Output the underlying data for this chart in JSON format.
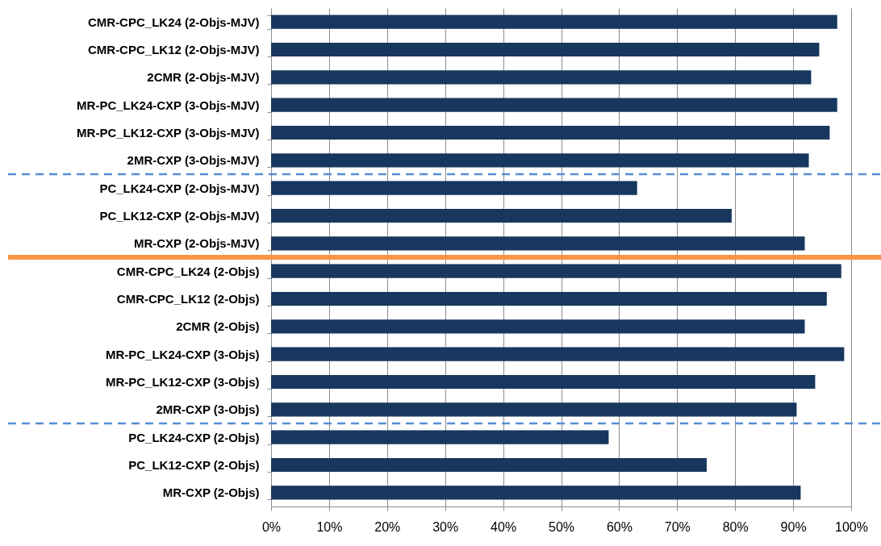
{
  "chart_data": {
    "type": "bar",
    "orientation": "horizontal",
    "categories": [
      "CMR-CPC_LK24 (2-Objs-MJV)",
      "CMR-CPC_LK12 (2-Objs-MJV)",
      "2CMR (2-Objs-MJV)",
      "MR-PC_LK24-CXP (3-Objs-MJV)",
      "MR-PC_LK12-CXP (3-Objs-MJV)",
      "2MR-CXP (3-Objs-MJV)",
      "PC_LK24-CXP (2-Objs-MJV)",
      "PC_LK12-CXP (2-Objs-MJV)",
      "MR-CXP (2-Objs-MJV)",
      "CMR-CPC_LK24 (2-Objs)",
      "CMR-CPC_LK12 (2-Objs)",
      "2CMR (2-Objs)",
      "MR-PC_LK24-CXP (3-Objs)",
      "MR-PC_LK12-CXP (3-Objs)",
      "2MR-CXP (3-Objs)",
      "PC_LK24-CXP (2-Objs)",
      "PC_LK12-CXP (2-Objs)",
      "MR-CXP (2-Objs)"
    ],
    "values": [
      97.6,
      94.5,
      93.1,
      97.6,
      96.3,
      92.7,
      63.1,
      79.4,
      92.0,
      98.3,
      95.8,
      92.0,
      98.8,
      93.8,
      90.6,
      58.2,
      75.1,
      91.3
    ],
    "color": "#17375e",
    "xlim": [
      0,
      100
    ],
    "xticks": [
      {
        "value": 0,
        "label": "0%"
      },
      {
        "value": 10,
        "label": "10%"
      },
      {
        "value": 20,
        "label": "20%"
      },
      {
        "value": 30,
        "label": "30%"
      },
      {
        "value": 40,
        "label": "40%"
      },
      {
        "value": 50,
        "label": "50%"
      },
      {
        "value": 60,
        "label": "60%"
      },
      {
        "value": 70,
        "label": "70%"
      },
      {
        "value": 80,
        "label": "80%"
      },
      {
        "value": 90,
        "label": "90%"
      },
      {
        "value": 100,
        "label": "100%"
      }
    ],
    "grid": "x",
    "ref_lines": [
      {
        "axis": "y",
        "value": "2MR-CXP (3-Objs-MJV)",
        "color": "#558ed5",
        "line_style": "dashed"
      },
      {
        "axis": "y",
        "value": "MR-CXP (2-Objs-MJV)",
        "color": "#f79646",
        "line_style": "solid"
      },
      {
        "axis": "y",
        "value": "2MR-CXP (3-Objs)",
        "color": "#558ed5",
        "line_style": "dashed"
      }
    ]
  }
}
